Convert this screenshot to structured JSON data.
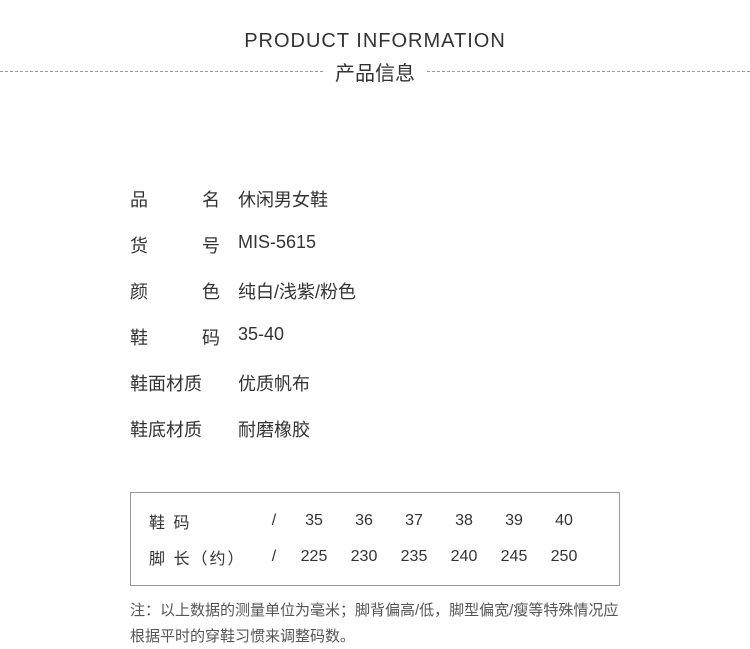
{
  "header": {
    "title_en": "PRODUCT INFORMATION",
    "title_cn": "产品信息"
  },
  "specs": [
    {
      "label_chars": [
        "品",
        "名"
      ],
      "value": "休闲男女鞋"
    },
    {
      "label_chars": [
        "货",
        "号"
      ],
      "value": "MIS-5615"
    },
    {
      "label_chars": [
        "颜",
        "色"
      ],
      "value": "纯白/浅紫/粉色"
    },
    {
      "label_chars": [
        "鞋",
        "码"
      ],
      "value": "35-40"
    },
    {
      "label_chars": [
        "鞋面材质"
      ],
      "value": "优质帆布"
    },
    {
      "label_chars": [
        "鞋底材质"
      ],
      "value": "耐磨橡胶"
    }
  ],
  "size_table": {
    "rows": [
      {
        "label": "鞋 码",
        "sep": "/",
        "cells": [
          "35",
          "36",
          "37",
          "38",
          "39",
          "40"
        ]
      },
      {
        "label": "脚 长（约）",
        "sep": "/",
        "cells": [
          "225",
          "230",
          "235",
          "240",
          "245",
          "250"
        ]
      }
    ]
  },
  "note": "注：以上数据的测量单位为毫米；脚背偏高/低，脚型偏宽/瘦等特殊情况应根据平时的穿鞋习惯来调整码数。",
  "colors": {
    "text": "#333333",
    "border": "#999999",
    "note_text": "#555555",
    "background": "#ffffff"
  }
}
